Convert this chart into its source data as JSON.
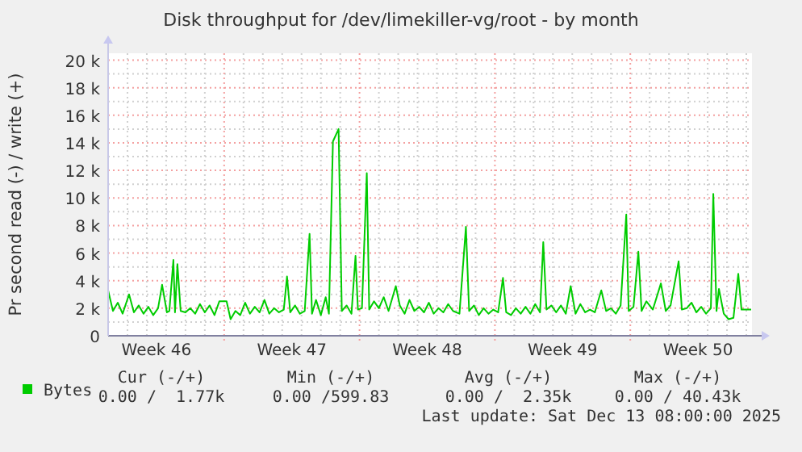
{
  "chart_data": {
    "type": "line",
    "title": "Disk throughput for /dev/limekiller-vg/root - by month",
    "ylabel": "Pr second read (-) / write (+)",
    "xlim": [
      "2025-11-11T00:00",
      "2025-12-14T07:00"
    ],
    "xticks": [
      {
        "value": "2025-11-12",
        "label": null
      },
      {
        "value": "2025-11-13",
        "label": null
      },
      {
        "value": "2025-11-13T12:00",
        "label": "Week 46"
      },
      {
        "value": "2025-11-14",
        "label": null
      },
      {
        "value": "2025-11-15",
        "label": null
      },
      {
        "value": "2025-11-16",
        "label": null
      },
      {
        "value": "2025-11-17",
        "label": null
      },
      {
        "value": "2025-11-18",
        "label": null
      },
      {
        "value": "2025-11-19",
        "label": null
      },
      {
        "value": "2025-11-20",
        "label": null
      },
      {
        "value": "2025-11-20T12:00",
        "label": "Week 47"
      },
      {
        "value": "2025-11-21",
        "label": null
      },
      {
        "value": "2025-11-22",
        "label": null
      },
      {
        "value": "2025-11-23",
        "label": null
      },
      {
        "value": "2025-11-24",
        "label": null
      },
      {
        "value": "2025-11-25",
        "label": null
      },
      {
        "value": "2025-11-26",
        "label": null
      },
      {
        "value": "2025-11-27",
        "label": null
      },
      {
        "value": "2025-11-27T12:00",
        "label": "Week 48"
      },
      {
        "value": "2025-11-28",
        "label": null
      },
      {
        "value": "2025-11-29",
        "label": null
      },
      {
        "value": "2025-11-30",
        "label": null
      },
      {
        "value": "2025-12-01",
        "label": null
      },
      {
        "value": "2025-12-02",
        "label": null
      },
      {
        "value": "2025-12-03",
        "label": null
      },
      {
        "value": "2025-12-04",
        "label": null
      },
      {
        "value": "2025-12-04T12:00",
        "label": "Week 49"
      },
      {
        "value": "2025-12-05",
        "label": null
      },
      {
        "value": "2025-12-06",
        "label": null
      },
      {
        "value": "2025-12-07",
        "label": null
      },
      {
        "value": "2025-12-08",
        "label": null
      },
      {
        "value": "2025-12-09",
        "label": null
      },
      {
        "value": "2025-12-10",
        "label": null
      },
      {
        "value": "2025-12-11",
        "label": null
      },
      {
        "value": "2025-12-11T12:00",
        "label": "Week 50"
      },
      {
        "value": "2025-12-12",
        "label": null
      },
      {
        "value": "2025-12-13",
        "label": null
      },
      {
        "value": "2025-12-14",
        "label": null
      }
    ],
    "ylim": [
      0,
      20500
    ],
    "yticks": [
      {
        "value": 0,
        "label": "0"
      },
      {
        "value": 1000,
        "label": null
      },
      {
        "value": 2000,
        "label": "2 k"
      },
      {
        "value": 3000,
        "label": null
      },
      {
        "value": 4000,
        "label": "4 k"
      },
      {
        "value": 5000,
        "label": null
      },
      {
        "value": 6000,
        "label": "6 k"
      },
      {
        "value": 7000,
        "label": null
      },
      {
        "value": 8000,
        "label": "8 k"
      },
      {
        "value": 9000,
        "label": null
      },
      {
        "value": 10000,
        "label": "10 k"
      },
      {
        "value": 11000,
        "label": null
      },
      {
        "value": 12000,
        "label": "12 k"
      },
      {
        "value": 13000,
        "label": null
      },
      {
        "value": 14000,
        "label": "14 k"
      },
      {
        "value": 15000,
        "label": null
      },
      {
        "value": 16000,
        "label": "16 k"
      },
      {
        "value": 17000,
        "label": null
      },
      {
        "value": 18000,
        "label": "18 k"
      },
      {
        "value": 19000,
        "label": null
      },
      {
        "value": 20000,
        "label": "20 k"
      }
    ],
    "grid": true,
    "legend": "bottom",
    "series": [
      {
        "name": "Bytes",
        "color": "#00cc00",
        "x": [
          "2025-11-11T00:00",
          "2025-11-11T06:00",
          "2025-11-11T12:00",
          "2025-11-11T18:00",
          "2025-11-12T02:00",
          "2025-11-12T08:00",
          "2025-11-12T14:00",
          "2025-11-12T20:00",
          "2025-11-13T02:00",
          "2025-11-13T08:00",
          "2025-11-13T14:00",
          "2025-11-13T19:00",
          "2025-11-14T01:00",
          "2025-11-14T04:00",
          "2025-11-14T09:00",
          "2025-11-14T11:00",
          "2025-11-14T14:00",
          "2025-11-14T18:00",
          "2025-11-15T00:00",
          "2025-11-15T06:00",
          "2025-11-15T12:00",
          "2025-11-15T18:00",
          "2025-11-16T00:00",
          "2025-11-16T06:00",
          "2025-11-16T12:00",
          "2025-11-16T18:00",
          "2025-11-17T03:00",
          "2025-11-17T08:00",
          "2025-11-17T14:00",
          "2025-11-17T20:00",
          "2025-11-18T02:00",
          "2025-11-18T08:00",
          "2025-11-18T14:00",
          "2025-11-18T20:00",
          "2025-11-19T02:00",
          "2025-11-19T08:00",
          "2025-11-19T14:00",
          "2025-11-19T20:00",
          "2025-11-20T02:00",
          "2025-11-20T06:00",
          "2025-11-20T10:00",
          "2025-11-20T16:00",
          "2025-11-20T22:00",
          "2025-11-21T04:00",
          "2025-11-21T10:00",
          "2025-11-21T13:00",
          "2025-11-21T18:00",
          "2025-11-22T00:00",
          "2025-11-22T06:00",
          "2025-11-22T10:00",
          "2025-11-22T15:00",
          "2025-11-22T22:00",
          "2025-11-23T02:00",
          "2025-11-23T08:00",
          "2025-11-23T14:00",
          "2025-11-23T19:00",
          "2025-11-23T22:00",
          "2025-11-24T03:00",
          "2025-11-24T09:00",
          "2025-11-24T12:00",
          "2025-11-24T18:00",
          "2025-11-25T00:00",
          "2025-11-25T06:00",
          "2025-11-25T12:00",
          "2025-11-25T21:00",
          "2025-11-26T02:00",
          "2025-11-26T08:00",
          "2025-11-26T14:00",
          "2025-11-26T20:00",
          "2025-11-27T02:00",
          "2025-11-27T08:00",
          "2025-11-27T14:00",
          "2025-11-27T20:00",
          "2025-11-28T02:00",
          "2025-11-28T08:00",
          "2025-11-28T14:00",
          "2025-11-28T20:00",
          "2025-11-29T04:00",
          "2025-11-29T12:00",
          "2025-11-29T16:00",
          "2025-11-29T22:00",
          "2025-11-30T04:00",
          "2025-11-30T10:00",
          "2025-11-30T16:00",
          "2025-11-30T22:00",
          "2025-12-01T04:00",
          "2025-12-01T10:00",
          "2025-12-01T14:00",
          "2025-12-01T20:00",
          "2025-12-02T02:00",
          "2025-12-02T08:00",
          "2025-12-02T14:00",
          "2025-12-02T20:00",
          "2025-12-03T02:00",
          "2025-12-03T08:00",
          "2025-12-03T12:00",
          "2025-12-03T16:00",
          "2025-12-03T22:00",
          "2025-12-04T04:00",
          "2025-12-04T10:00",
          "2025-12-04T16:00",
          "2025-12-04T22:00",
          "2025-12-05T04:00",
          "2025-12-05T10:00",
          "2025-12-05T16:00",
          "2025-12-05T22:00",
          "2025-12-06T04:00",
          "2025-12-06T12:00",
          "2025-12-06T18:00",
          "2025-12-07T00:00",
          "2025-12-07T06:00",
          "2025-12-07T12:00",
          "2025-12-07T19:00",
          "2025-12-07T22:00",
          "2025-12-08T04:00",
          "2025-12-08T10:00",
          "2025-12-08T14:00",
          "2025-12-08T20:00",
          "2025-12-09T04:00",
          "2025-12-09T14:00",
          "2025-12-09T20:00",
          "2025-12-10T02:00",
          "2025-12-10T12:00",
          "2025-12-10T16:00",
          "2025-12-10T22:00",
          "2025-12-11T04:00",
          "2025-12-11T10:00",
          "2025-12-11T16:00",
          "2025-12-11T22:00",
          "2025-12-12T04:00",
          "2025-12-12T07:00",
          "2025-12-12T11:00",
          "2025-12-12T14:00",
          "2025-12-12T20:00",
          "2025-12-13T02:00",
          "2025-12-13T08:00",
          "2025-12-13T14:00",
          "2025-12-13T18:00",
          "2025-12-14T06:00"
        ],
        "values": [
          3300,
          1800,
          2400,
          1600,
          3000,
          1700,
          2200,
          1600,
          2100,
          1500,
          2000,
          3700,
          1700,
          1800,
          5500,
          1700,
          5200,
          1800,
          1700,
          2000,
          1600,
          2300,
          1700,
          2200,
          1500,
          2500,
          2500,
          1200,
          1800,
          1500,
          2400,
          1600,
          2100,
          1700,
          2600,
          1600,
          2000,
          1700,
          1900,
          4300,
          1700,
          2200,
          1600,
          1800,
          7400,
          1600,
          2600,
          1500,
          2800,
          1600,
          14100,
          15000,
          1800,
          2200,
          1600,
          5800,
          1900,
          2000,
          11800,
          1900,
          2500,
          2000,
          2800,
          1800,
          3600,
          2200,
          1600,
          2600,
          1800,
          2100,
          1700,
          2400,
          1600,
          2000,
          1700,
          2300,
          1800,
          1600,
          7900,
          1800,
          2200,
          1500,
          2000,
          1600,
          1900,
          1700,
          4200,
          1700,
          1500,
          2000,
          1600,
          2100,
          1600,
          2300,
          1700,
          6800,
          1900,
          2200,
          1700,
          2200,
          1600,
          3600,
          1600,
          2300,
          1700,
          1900,
          1700,
          3300,
          1800,
          2000,
          1600,
          2200,
          8800,
          1800,
          2100,
          6100,
          1800,
          2500,
          1900,
          3800,
          1800,
          2200,
          5400,
          1900,
          2000,
          2400,
          1700,
          2100,
          1600,
          2000,
          10300,
          1800,
          3400,
          1600,
          1200,
          1300,
          4500,
          1900,
          1900
        ]
      }
    ],
    "annotations": [
      "Cur (-/+)",
      "Min (-/+)",
      "Avg (-/+)",
      "Max (-/+)",
      "0.00 /  1.77k",
      "0.00 /599.83",
      "0.00 /  2.35k",
      "0.00 / 40.43k",
      "Last update: Sat Dec 13 08:00:00 2025"
    ]
  }
}
